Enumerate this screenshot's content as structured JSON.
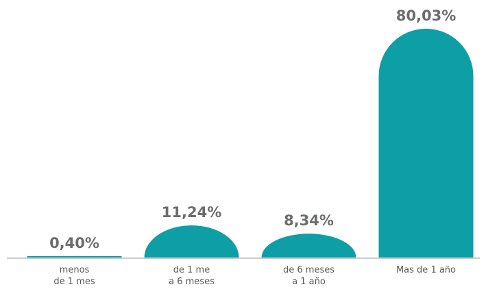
{
  "chart_data": {
    "type": "bar",
    "categories": [
      "menos\nde 1 mes",
      "de 1 me\na 6 meses",
      "de 6 meses\na 1 año",
      "Mas de 1 año"
    ],
    "values": [
      0.4,
      11.24,
      8.34,
      80.03
    ],
    "value_labels": [
      "0,40%",
      "11,24%",
      "8,34%",
      "80,03%"
    ],
    "color": "#0d9ea6",
    "ylim": [
      0,
      80
    ]
  }
}
